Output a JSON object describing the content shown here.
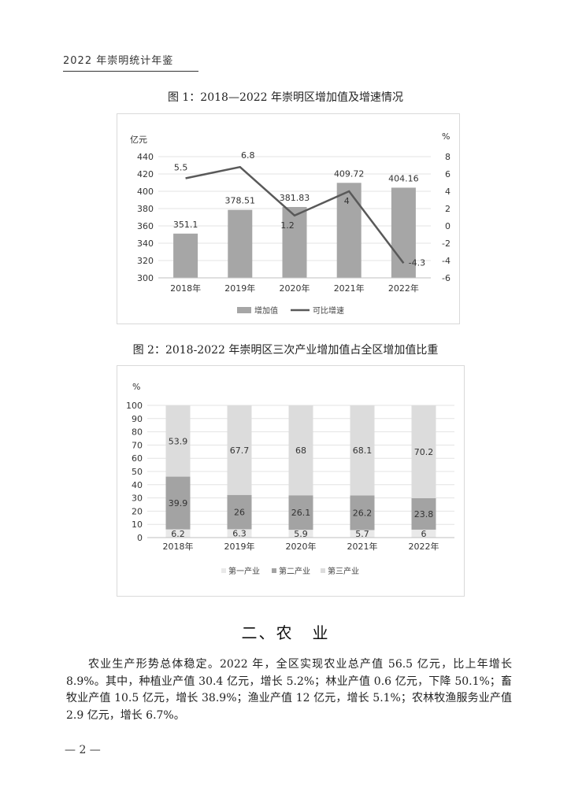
{
  "header": {
    "running_title": "2022 年崇明统计年鉴"
  },
  "figure1": {
    "title": "图 1：2018—2022 年崇明区增加值及增速情况",
    "chart_data": {
      "type": "bar",
      "categories": [
        "2018年",
        "2019年",
        "2020年",
        "2021年",
        "2022年"
      ],
      "series": [
        {
          "name": "增加值",
          "type": "bar",
          "axis": "left",
          "color": "#a6a6a6",
          "values": [
            351.1,
            378.51,
            381.83,
            409.72,
            404.16
          ]
        },
        {
          "name": "可比增速",
          "type": "line",
          "axis": "right",
          "color": "#595959",
          "values": [
            5.5,
            6.8,
            1.2,
            4,
            -4.3
          ]
        }
      ],
      "y_left": {
        "unit": "亿元",
        "ylim": [
          300,
          440
        ],
        "ticks": [
          300,
          320,
          340,
          360,
          380,
          400,
          420,
          440
        ]
      },
      "y_right": {
        "unit": "%",
        "ylim": [
          -6,
          8
        ],
        "ticks": [
          -6,
          -4,
          -2,
          0,
          2,
          4,
          6,
          8
        ]
      },
      "bar_labels": [
        "351.1",
        "378.51",
        "381.83",
        "409.72",
        "404.16"
      ],
      "line_labels": [
        "5.5",
        "6.8",
        "1.2",
        "4",
        "-4.3"
      ],
      "legend": {
        "placement": "bottom",
        "items": [
          "增加值",
          "可比增速"
        ]
      },
      "grid": true
    }
  },
  "figure2": {
    "title": "图 2：2018-2022 年崇明区三次产业增加值占全区增加值比重",
    "chart_data": {
      "type": "bar",
      "stacked": true,
      "categories": [
        "2018年",
        "2019年",
        "2020年",
        "2021年",
        "2022年"
      ],
      "series": [
        {
          "name": "第一产业",
          "color": "#e9e9e9",
          "values": [
            6.2,
            6.3,
            5.9,
            5.7,
            6
          ]
        },
        {
          "name": "第二产业",
          "color": "#a3a3a3",
          "values": [
            39.9,
            26,
            26.1,
            26.2,
            23.8
          ]
        },
        {
          "name": "第三产业",
          "color": "#dcdcdc",
          "values": [
            53.9,
            67.7,
            68,
            68.1,
            70.2
          ]
        }
      ],
      "y": {
        "unit": "%",
        "ylim": [
          0,
          100
        ],
        "ticks": [
          0,
          10,
          20,
          30,
          40,
          50,
          60,
          70,
          80,
          90,
          100
        ]
      },
      "legend": {
        "placement": "bottom",
        "items": [
          "第一产业",
          "第二产业",
          "第三产业"
        ]
      },
      "grid": true
    }
  },
  "section": {
    "number": "二、",
    "title_a": "农",
    "title_b": "业"
  },
  "paragraph": "农业生产形势总体稳定。2022 年，全区实现农业总产值 56.5 亿元，比上年增长 8.9%。其中，种植业产值 30.4 亿元，增长 5.2%；林业产值 0.6 亿元，下降 50.1%；畜牧业产值 10.5 亿元，增长 38.9%；渔业产值 12 亿元，增长 5.1%；农林牧渔服务业产值 2.9 亿元，增长 6.7%。",
  "footer": {
    "page_number": "— 2 —"
  }
}
